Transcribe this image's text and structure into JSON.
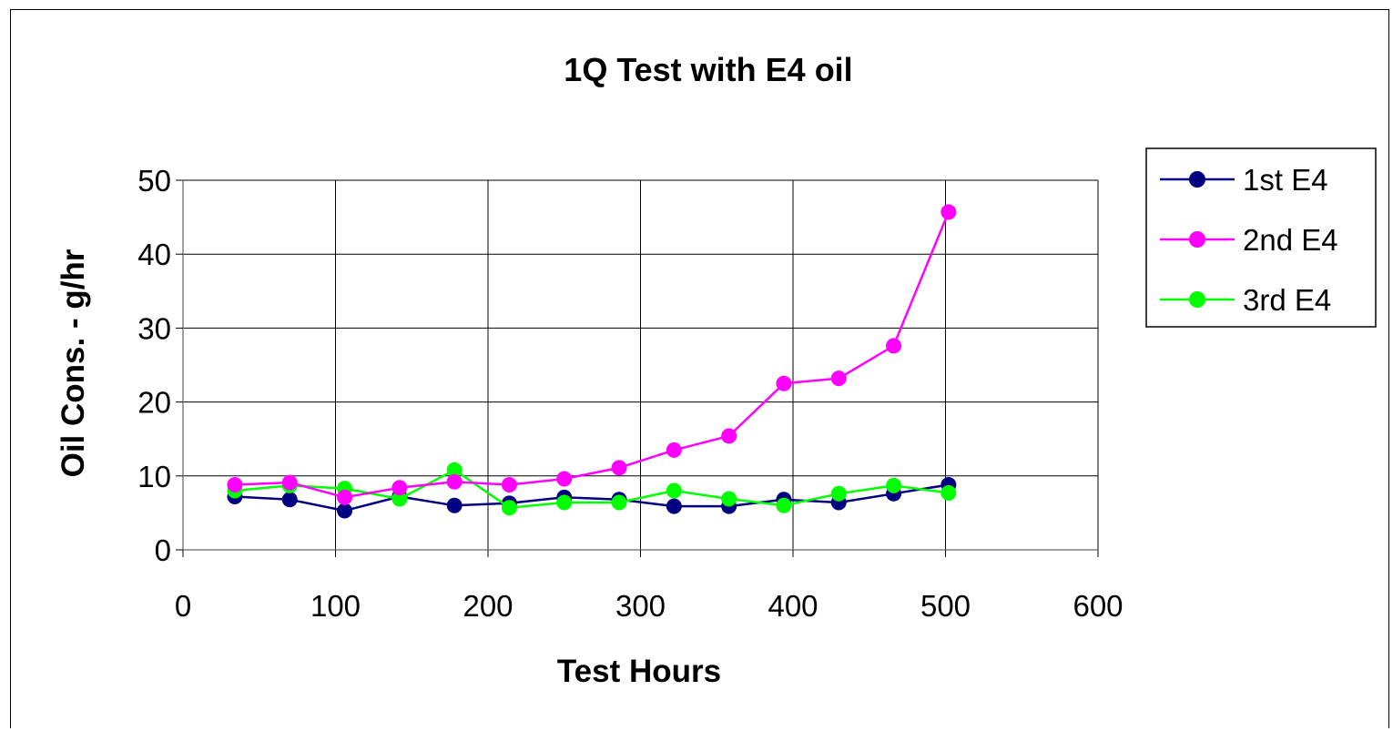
{
  "chart_data": {
    "type": "line",
    "title": "1Q Test with E4 oil",
    "xlabel": "Test Hours",
    "ylabel": "Oil Cons. - g/hr",
    "xlim": [
      0,
      600
    ],
    "ylim": [
      0,
      50
    ],
    "xticks": [
      0,
      100,
      200,
      300,
      400,
      500,
      600
    ],
    "yticks": [
      0,
      10,
      20,
      30,
      40,
      50
    ],
    "grid": true,
    "legend_position": "right",
    "series": [
      {
        "name": "1st E4",
        "color": "#000080",
        "x": [
          34,
          70,
          106,
          142,
          178,
          214,
          250,
          286,
          322,
          358,
          394,
          430,
          466,
          502
        ],
        "y": [
          7.2,
          6.8,
          5.3,
          7.2,
          6.0,
          6.3,
          7.1,
          6.8,
          5.9,
          5.9,
          6.8,
          6.4,
          7.6,
          8.8
        ]
      },
      {
        "name": "2nd E4",
        "color": "#ff00ff",
        "x": [
          34,
          70,
          106,
          142,
          178,
          214,
          250,
          286,
          322,
          358,
          394,
          430,
          466,
          502
        ],
        "y": [
          8.8,
          9.1,
          7.1,
          8.4,
          9.2,
          8.8,
          9.6,
          11.1,
          13.5,
          15.4,
          22.5,
          23.2,
          27.6,
          45.7
        ]
      },
      {
        "name": "3rd E4",
        "color": "#00ff00",
        "x": [
          34,
          70,
          106,
          142,
          178,
          214,
          250,
          286,
          322,
          358,
          394,
          430,
          466,
          502
        ],
        "y": [
          8.0,
          8.7,
          8.3,
          6.9,
          10.8,
          5.7,
          6.4,
          6.4,
          8.0,
          6.9,
          6.0,
          7.6,
          8.7,
          7.7
        ]
      }
    ]
  }
}
